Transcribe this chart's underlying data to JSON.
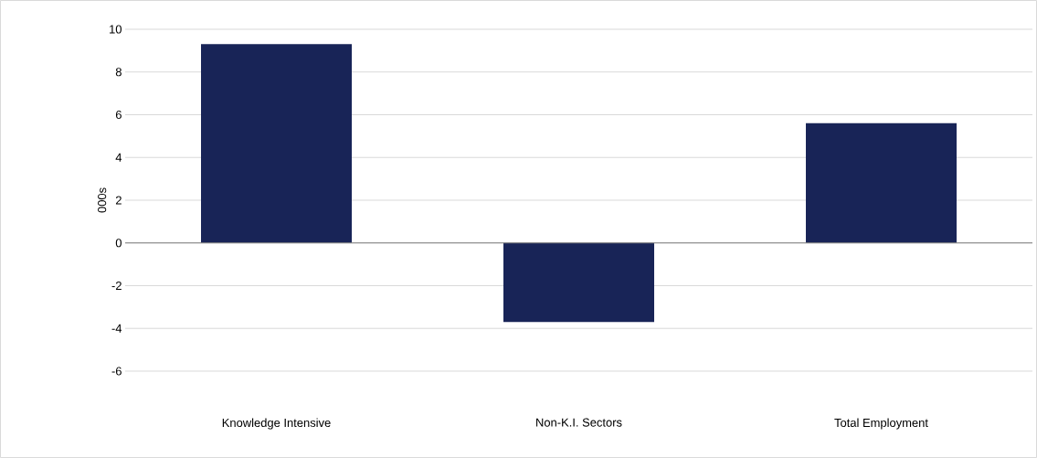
{
  "chart_data": {
    "type": "bar",
    "ylabel": "000s",
    "categories": [
      "Knowledge Intensive",
      "Non-K.I. Sectors",
      "Total Employment"
    ],
    "values": [
      9.3,
      -3.7,
      5.6
    ],
    "color": "#182457",
    "ylim": [
      -6,
      10
    ],
    "yticks": [
      -6,
      -4,
      -2,
      0,
      2,
      4,
      6,
      8,
      10
    ],
    "grid": "y"
  }
}
